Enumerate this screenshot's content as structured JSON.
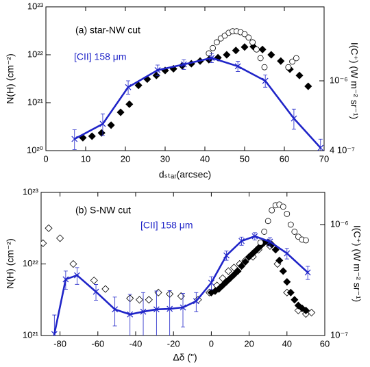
{
  "chart_data": [
    {
      "type": "line",
      "title": "(a) star-NW cut",
      "xlabel": "dₛₜₐᵣ(arcsec)",
      "ylabel": "N(H) (cm⁻²)",
      "y2label": "I(C⁺) (W m⁻² sr⁻¹)",
      "xlim": [
        0,
        70
      ],
      "xticks": [
        0,
        10,
        20,
        30,
        40,
        50,
        60,
        70
      ],
      "ylim": [
        1e+20,
        1e+23
      ],
      "ylog": true,
      "yticks": [
        {
          "value": 1e+20,
          "label": "10²⁰"
        },
        {
          "value": 1e+21,
          "label": "10²¹"
        },
        {
          "value": 1e+22,
          "label": "10²²"
        },
        {
          "value": 1e+23,
          "label": "10²³"
        }
      ],
      "y2lim": [
        4e-07,
        2.64e-06
      ],
      "y2log": true,
      "y2ticks": [
        {
          "value": 4e-07,
          "label": "4 10⁻⁷"
        },
        {
          "value": 1e-06,
          "label": "10⁻⁶"
        }
      ],
      "series": [
        {
          "color": "#000000",
          "marker": "filled-diamond",
          "x": [
            9.3,
            11.6,
            14,
            16.4,
            18.8,
            21,
            23.3,
            25.5,
            27.8,
            30,
            32.1,
            34.3,
            36.6,
            38.8,
            41,
            43.3,
            45.5,
            47.8,
            50,
            52.2,
            54.5,
            56.7,
            59.1,
            61.4,
            63.8,
            66
          ],
          "values": [
            1.86e+20,
            2e+20,
            2.34e+20,
            3.4e+20,
            6.3e+20,
            9.3e+20,
            2.3e+21,
            3.1e+21,
            3.7e+21,
            4.7e+21,
            5.1e+21,
            5.9e+21,
            6.5e+21,
            7.4e+21,
            7.9e+21,
            8.7e+21,
            1e+22,
            1.23e+22,
            1.45e+22,
            1.48e+22,
            1.29e+22,
            1e+22,
            7.4e+21,
            5e+21,
            3.7e+21,
            2.2e+21
          ]
        },
        {
          "color": "#000000",
          "marker": "open-circle",
          "x": [
            41,
            42,
            43,
            44,
            45,
            46,
            47,
            48,
            49,
            50,
            51,
            52,
            53,
            54,
            55,
            61,
            62,
            63
          ],
          "values": [
            1.07e+22,
            1.38e+22,
            1.82e+22,
            2.19e+22,
            2.51e+22,
            2.88e+22,
            3.09e+22,
            3.09e+22,
            2.95e+22,
            2.69e+22,
            2.29e+22,
            1.82e+22,
            1.29e+22,
            8.5e+21,
            5.5e+21,
            5.5e+21,
            7.2e+21,
            8.5e+21
          ]
        },
        {
          "name": "[CII] 158 μm",
          "color": "#1f24c8",
          "marker": "x",
          "line": true,
          "axis": "y2",
          "x": [
            7.2,
            14.3,
            20.7,
            28.1,
            34.7,
            41.7,
            48.3,
            55.2,
            62.4,
            69.1
          ],
          "values": [
            4.66e-07,
            5.68e-07,
            9.2e-07,
            1.15e-06,
            1.24e-06,
            1.35e-06,
            1.21e-06,
            1e-06,
            6.1e-07,
            4.15e-07
          ],
          "errors": [
            6e-08,
            8e-08,
            8e-08,
            8e-08,
            8e-08,
            8e-08,
            8e-08,
            8e-08,
            8e-08,
            5e-08
          ]
        }
      ]
    },
    {
      "type": "line",
      "title": "(b) S-NW cut",
      "xlabel": "Δδ (\")",
      "ylabel": "N(H) (cm⁻²)",
      "y2label": "I(C⁺) (W m⁻² sr⁻¹)",
      "xlim": [
        -90,
        60
      ],
      "xticks": [
        -80,
        -60,
        -40,
        -20,
        0,
        20,
        40,
        60
      ],
      "ylim": [
        1e+21,
        1e+23
      ],
      "ylog": true,
      "yticks": [
        {
          "value": 1e+21,
          "label": "10²¹"
        },
        {
          "value": 1e+22,
          "label": "10²²"
        },
        {
          "value": 1e+23,
          "label": "10²³"
        }
      ],
      "y2lim": [
        1e-07,
        1.95e-06
      ],
      "y2log": true,
      "y2ticks": [
        {
          "value": 1e-07,
          "label": "10⁻⁷"
        },
        {
          "value": 1e-06,
          "label": "10⁻⁶"
        }
      ],
      "series": [
        {
          "color": "#000000",
          "marker": "open-diamond",
          "x": [
            -89,
            -86,
            -80,
            -73,
            -62,
            -56,
            -43,
            -38,
            -33,
            -28,
            -22,
            -16,
            -7,
            -1,
            3,
            6,
            9,
            12,
            15,
            18,
            22,
            25,
            28,
            31,
            35,
            40,
            46,
            50,
            53
          ],
          "values": [
            1.95e+22,
            3.16e+22,
            2.29e+22,
            1e+22,
            5.89e+21,
            4.47e+21,
            3.31e+21,
            3.16e+21,
            3.16e+21,
            3.98e+21,
            3.8e+21,
            3.55e+21,
            3.16e+21,
            3.98e+21,
            5.01e+21,
            6.31e+21,
            7.94e+21,
            8.91e+21,
            1e+22,
            1.12e+22,
            1.26e+22,
            1.58e+22,
            2e+22,
            1.78e+22,
            1e+22,
            3.98e+21,
            2.24e+21,
            2e+21,
            2.09e+21
          ]
        },
        {
          "color": "#000000",
          "marker": "filled-diamond",
          "x": [
            0,
            2,
            4,
            6,
            8,
            10,
            12,
            14,
            16,
            18,
            20,
            22,
            24,
            26,
            28,
            30,
            32,
            34,
            36,
            38,
            40,
            42,
            44,
            46,
            48,
            50
          ],
          "values": [
            3.98e+21,
            4.17e+21,
            4.47e+21,
            5.01e+21,
            5.62e+21,
            6.31e+21,
            7.08e+21,
            7.94e+21,
            9.33e+21,
            1.07e+22,
            1.26e+22,
            1.41e+22,
            1.58e+22,
            1.78e+22,
            2e+22,
            2e+22,
            1.86e+22,
            1.58e+22,
            1.12e+22,
            7.94e+21,
            5.62e+21,
            3.98e+21,
            3.16e+21,
            2.63e+21,
            2.4e+21,
            2.24e+21
          ]
        },
        {
          "color": "#000000",
          "marker": "open-circle",
          "x": [
            26,
            28,
            30,
            32,
            34,
            36,
            38,
            40,
            42,
            44,
            46,
            48,
            50
          ],
          "values": [
            1.99e+22,
            2.82e+22,
            3.98e+22,
            5.62e+22,
            6.61e+22,
            6.76e+22,
            6.31e+22,
            5.01e+22,
            3.55e+22,
            2.82e+22,
            2.4e+22,
            2.19e+22,
            2.14e+22
          ]
        },
        {
          "name": "[CII] 158 μm",
          "color": "#1f24c8",
          "marker": "x",
          "line": true,
          "axis": "y2",
          "x": [
            -83,
            -77,
            -71,
            -61,
            -51,
            -43,
            -36,
            -29,
            -22,
            -15,
            -8,
            0,
            8,
            16,
            23,
            31,
            40,
            51
          ],
          "values": [
            1.03e-07,
            3.21e-07,
            3.49e-07,
            2.48e-07,
            1.72e-07,
            1.55e-07,
            1.64e-07,
            1.72e-07,
            1.74e-07,
            1.79e-07,
            2.04e-07,
            2.99e-07,
            5.27e-07,
            7.11e-07,
            7.85e-07,
            7.01e-07,
            5.5e-07,
            3.7e-07
          ],
          "errors": [
            5e-08,
            6e-08,
            6e-08,
            4e-08,
            5e-08,
            8e-08,
            8e-08,
            8e-08,
            8e-08,
            6e-08,
            4e-08,
            4e-08,
            5e-08,
            6e-08,
            6e-08,
            6e-08,
            6e-08,
            5e-08
          ]
        }
      ]
    }
  ]
}
